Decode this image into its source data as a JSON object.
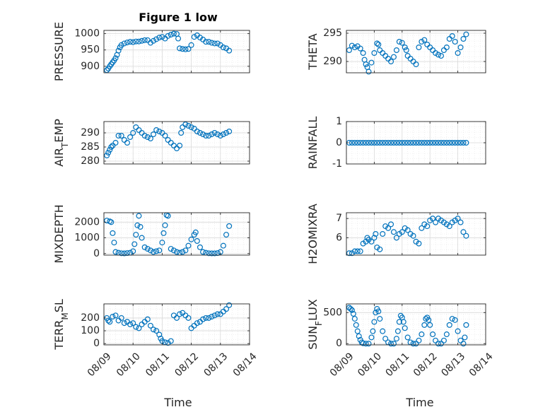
{
  "figure": {
    "title": "Figure 1 low",
    "xlabel": "Time"
  },
  "chart_data": [
    {
      "type": "scatter",
      "ylabel": "PRESSURE",
      "ylim": [
        880,
        1010
      ],
      "yticks": [
        900,
        950,
        1000
      ],
      "xlim": [
        "08/09",
        "08/14"
      ],
      "xticks": [
        "08/09",
        "08/10",
        "08/11",
        "08/12",
        "08/13",
        "08/14"
      ],
      "grid": "on",
      "show_xticklabels": false,
      "series": [
        {
          "x": [
            0.1,
            0.15,
            0.2,
            0.25,
            0.3,
            0.35,
            0.4,
            0.45,
            0.5,
            0.55,
            0.6,
            0.7,
            0.8,
            0.9,
            1.0,
            1.1,
            1.2,
            1.3,
            1.4,
            1.5,
            1.6,
            1.7,
            1.8,
            1.9,
            2.0,
            2.1,
            2.2,
            2.3,
            2.4,
            2.5,
            2.55,
            2.6,
            2.7,
            2.8,
            2.9,
            3.0,
            3.1,
            3.2,
            3.3,
            3.4,
            3.5,
            3.6,
            3.7,
            3.8,
            3.9,
            4.0,
            4.1,
            4.2,
            4.3
          ],
          "y": [
            888,
            893,
            900,
            906,
            912,
            918,
            925,
            935,
            948,
            958,
            965,
            970,
            973,
            975,
            974,
            976,
            976,
            978,
            980,
            980,
            972,
            978,
            983,
            988,
            990,
            985,
            993,
            997,
            1000,
            999,
            985,
            955,
            953,
            952,
            953,
            965,
            990,
            995,
            988,
            982,
            975,
            975,
            972,
            970,
            970,
            965,
            958,
            955,
            948
          ]
        }
      ]
    },
    {
      "type": "scatter",
      "ylabel": "THETA",
      "ylim": [
        288,
        295.5
      ],
      "yticks": [
        290,
        295
      ],
      "xlim": [
        "08/09",
        "08/14"
      ],
      "xticks": [
        "08/09",
        "08/10",
        "08/11",
        "08/12",
        "08/13",
        "08/14"
      ],
      "grid": "on",
      "show_xticklabels": false,
      "series": [
        {
          "x": [
            0.1,
            0.2,
            0.3,
            0.4,
            0.5,
            0.6,
            0.65,
            0.7,
            0.75,
            0.8,
            0.9,
            1.0,
            1.1,
            1.15,
            1.2,
            1.3,
            1.4,
            1.5,
            1.6,
            1.7,
            1.8,
            1.9,
            2.0,
            2.1,
            2.15,
            2.2,
            2.3,
            2.4,
            2.5,
            2.6,
            2.7,
            2.8,
            2.9,
            3.0,
            3.1,
            3.2,
            3.3,
            3.4,
            3.5,
            3.6,
            3.7,
            3.8,
            3.9,
            4.0,
            4.1,
            4.2,
            4.3
          ],
          "y": [
            292.0,
            292.8,
            292.5,
            292.7,
            292.3,
            291.5,
            290.3,
            289.5,
            289.0,
            288.2,
            289.8,
            291.5,
            293.2,
            293.0,
            292.0,
            291.5,
            291.0,
            290.5,
            290.0,
            290.8,
            292.0,
            293.5,
            293.3,
            292.5,
            292.0,
            291.0,
            290.5,
            290.0,
            289.5,
            292.5,
            293.5,
            293.8,
            293.0,
            292.5,
            292.0,
            291.5,
            291.2,
            291.0,
            292.0,
            292.5,
            294.0,
            294.5,
            293.5,
            291.5,
            292.5,
            294.0,
            294.8
          ]
        }
      ]
    },
    {
      "type": "scatter",
      "ylabel": "AIR_TEMP",
      "ylim": [
        279,
        294
      ],
      "yticks": [
        280,
        285,
        290
      ],
      "xlim": [
        "08/09",
        "08/14"
      ],
      "xticks": [
        "08/09",
        "08/10",
        "08/11",
        "08/12",
        "08/13",
        "08/14"
      ],
      "grid": "on",
      "show_xticklabels": false,
      "series": [
        {
          "x": [
            0.1,
            0.15,
            0.2,
            0.25,
            0.3,
            0.4,
            0.5,
            0.6,
            0.7,
            0.8,
            0.9,
            1.0,
            1.1,
            1.2,
            1.3,
            1.4,
            1.5,
            1.6,
            1.7,
            1.8,
            1.9,
            2.0,
            2.1,
            2.2,
            2.3,
            2.4,
            2.5,
            2.6,
            2.65,
            2.7,
            2.8,
            2.9,
            3.0,
            3.1,
            3.2,
            3.3,
            3.4,
            3.5,
            3.6,
            3.7,
            3.8,
            3.9,
            4.0,
            4.1,
            4.2,
            4.3
          ],
          "y": [
            282.0,
            283.0,
            284.0,
            285.0,
            285.5,
            286.5,
            289.0,
            289.0,
            287.5,
            286.5,
            288.5,
            290.0,
            292.0,
            291.0,
            290.0,
            289.0,
            288.5,
            288.0,
            289.5,
            291.0,
            290.5,
            290.0,
            289.0,
            287.5,
            286.5,
            285.5,
            284.5,
            285.5,
            290.0,
            292.0,
            293.0,
            292.5,
            292.0,
            291.5,
            290.5,
            290.0,
            289.5,
            289.0,
            289.0,
            289.5,
            290.0,
            289.5,
            289.0,
            289.5,
            290.0,
            290.5
          ]
        }
      ]
    },
    {
      "type": "scatter",
      "ylabel": "RAINFALL",
      "ylim": [
        -1,
        1
      ],
      "yticks": [
        -1,
        0,
        1
      ],
      "xlim": [
        "08/09",
        "08/14"
      ],
      "xticks": [
        "08/09",
        "08/10",
        "08/11",
        "08/12",
        "08/13",
        "08/14"
      ],
      "grid": "on",
      "show_xticklabels": false,
      "series": [
        {
          "x": [
            0.1,
            0.2,
            0.3,
            0.4,
            0.5,
            0.6,
            0.7,
            0.8,
            0.9,
            1.0,
            1.1,
            1.2,
            1.3,
            1.4,
            1.5,
            1.6,
            1.7,
            1.8,
            1.9,
            2.0,
            2.1,
            2.2,
            2.3,
            2.4,
            2.5,
            2.6,
            2.7,
            2.8,
            2.9,
            3.0,
            3.1,
            3.2,
            3.3,
            3.4,
            3.5,
            3.6,
            3.7,
            3.8,
            3.9,
            4.0,
            4.1,
            4.2,
            4.3
          ],
          "y": [
            0,
            0,
            0,
            0,
            0,
            0,
            0,
            0,
            0,
            0,
            0,
            0,
            0,
            0,
            0,
            0,
            0,
            0,
            0,
            0,
            0,
            0,
            0,
            0,
            0,
            0,
            0,
            0,
            0,
            0,
            0,
            0,
            0,
            0,
            0,
            0,
            0,
            0,
            0,
            0,
            0,
            0,
            0
          ]
        }
      ]
    },
    {
      "type": "scatter",
      "ylabel": "MIXDEPTH",
      "ylim": [
        -100,
        2600
      ],
      "yticks": [
        0,
        1000,
        2000
      ],
      "xlim": [
        "08/09",
        "08/14"
      ],
      "xticks": [
        "08/09",
        "08/10",
        "08/11",
        "08/12",
        "08/13",
        "08/14"
      ],
      "grid": "on",
      "show_xticklabels": false,
      "series": [
        {
          "x": [
            0.1,
            0.2,
            0.25,
            0.3,
            0.35,
            0.4,
            0.5,
            0.6,
            0.7,
            0.8,
            0.9,
            1.0,
            1.05,
            1.1,
            1.15,
            1.2,
            1.25,
            1.3,
            1.4,
            1.5,
            1.6,
            1.7,
            1.8,
            1.9,
            2.0,
            2.05,
            2.1,
            2.15,
            2.2,
            2.3,
            2.4,
            2.5,
            2.6,
            2.7,
            2.8,
            2.9,
            3.0,
            3.1,
            3.15,
            3.2,
            3.3,
            3.4,
            3.5,
            3.6,
            3.7,
            3.8,
            3.9,
            4.0,
            4.1,
            4.2,
            4.3
          ],
          "y": [
            2100,
            2050,
            2000,
            1300,
            700,
            100,
            50,
            20,
            10,
            30,
            50,
            150,
            600,
            1200,
            1800,
            2400,
            1700,
            1000,
            400,
            300,
            200,
            100,
            150,
            200,
            700,
            1300,
            1800,
            2450,
            2400,
            300,
            200,
            100,
            50,
            100,
            200,
            500,
            900,
            1200,
            1350,
            800,
            400,
            100,
            50,
            20,
            10,
            10,
            30,
            100,
            500,
            1200,
            1750
          ]
        }
      ]
    },
    {
      "type": "scatter",
      "ylabel": "H2OMIXRA",
      "ylim": [
        5.1,
        7.3
      ],
      "yticks": [
        6,
        7
      ],
      "xlim": [
        "08/09",
        "08/14"
      ],
      "xticks": [
        "08/09",
        "08/10",
        "08/11",
        "08/12",
        "08/13",
        "08/14"
      ],
      "grid": "on",
      "show_xticklabels": false,
      "series": [
        {
          "x": [
            0.1,
            0.2,
            0.3,
            0.4,
            0.5,
            0.6,
            0.7,
            0.75,
            0.8,
            0.9,
            1.0,
            1.05,
            1.1,
            1.2,
            1.3,
            1.4,
            1.5,
            1.6,
            1.7,
            1.8,
            1.9,
            2.0,
            2.1,
            2.2,
            2.3,
            2.4,
            2.5,
            2.6,
            2.7,
            2.8,
            2.9,
            3.0,
            3.1,
            3.2,
            3.3,
            3.4,
            3.5,
            3.6,
            3.7,
            3.8,
            3.9,
            4.0,
            4.1,
            4.2,
            4.3
          ],
          "y": [
            5.2,
            5.2,
            5.3,
            5.3,
            5.3,
            5.7,
            5.8,
            6.0,
            5.9,
            5.8,
            6.0,
            6.2,
            5.5,
            5.4,
            6.2,
            6.6,
            6.5,
            6.7,
            6.3,
            6.0,
            6.2,
            6.3,
            6.5,
            6.4,
            6.2,
            6.1,
            5.8,
            5.7,
            6.5,
            6.7,
            6.6,
            6.9,
            7.0,
            6.8,
            7.0,
            6.9,
            6.8,
            6.7,
            6.6,
            6.8,
            6.9,
            7.0,
            6.8,
            6.3,
            6.1
          ]
        }
      ]
    },
    {
      "type": "scatter",
      "ylabel": "TERR_MSL",
      "ylim": [
        -10,
        310
      ],
      "yticks": [
        0,
        100,
        200
      ],
      "xlim": [
        "08/09",
        "08/14"
      ],
      "xticks": [
        "08/09",
        "08/10",
        "08/11",
        "08/12",
        "08/13",
        "08/14"
      ],
      "grid": "on",
      "show_xticklabels": true,
      "series": [
        {
          "x": [
            0.1,
            0.15,
            0.2,
            0.3,
            0.4,
            0.5,
            0.6,
            0.7,
            0.8,
            0.9,
            1.0,
            1.1,
            1.2,
            1.3,
            1.4,
            1.5,
            1.6,
            1.7,
            1.8,
            1.9,
            1.95,
            2.0,
            2.1,
            2.2,
            2.3,
            2.4,
            2.5,
            2.6,
            2.7,
            2.8,
            2.9,
            3.0,
            3.1,
            3.2,
            3.3,
            3.4,
            3.5,
            3.6,
            3.7,
            3.8,
            3.9,
            4.0,
            4.1,
            4.2,
            4.3
          ],
          "y": [
            200,
            180,
            170,
            210,
            220,
            180,
            200,
            160,
            170,
            150,
            160,
            130,
            120,
            150,
            170,
            190,
            140,
            110,
            100,
            70,
            40,
            20,
            10,
            5,
            20,
            220,
            200,
            230,
            240,
            220,
            200,
            120,
            140,
            160,
            170,
            190,
            200,
            200,
            210,
            220,
            230,
            230,
            250,
            270,
            300
          ]
        }
      ]
    },
    {
      "type": "scatter",
      "ylabel": "SUN_FLUX",
      "ylim": [
        -20,
        640
      ],
      "yticks": [
        0,
        500
      ],
      "xlim": [
        "08/09",
        "08/14"
      ],
      "xticks": [
        "08/09",
        "08/10",
        "08/11",
        "08/12",
        "08/13",
        "08/14"
      ],
      "grid": "on",
      "show_xticklabels": true,
      "series": [
        {
          "x": [
            0.1,
            0.15,
            0.2,
            0.25,
            0.3,
            0.35,
            0.4,
            0.45,
            0.5,
            0.55,
            0.6,
            0.7,
            0.8,
            0.9,
            0.95,
            1.0,
            1.05,
            1.1,
            1.15,
            1.2,
            1.3,
            1.4,
            1.5,
            1.6,
            1.7,
            1.8,
            1.85,
            1.9,
            1.95,
            2.0,
            2.05,
            2.1,
            2.2,
            2.3,
            2.4,
            2.5,
            2.6,
            2.7,
            2.8,
            2.85,
            2.9,
            2.95,
            3.0,
            3.1,
            3.2,
            3.3,
            3.4,
            3.5,
            3.6,
            3.7,
            3.8,
            3.9,
            4.0,
            4.1,
            4.2,
            4.25,
            4.3
          ],
          "y": [
            580,
            560,
            540,
            480,
            400,
            300,
            200,
            120,
            60,
            20,
            5,
            0,
            0,
            100,
            200,
            350,
            500,
            560,
            520,
            400,
            200,
            80,
            20,
            0,
            0,
            80,
            200,
            350,
            450,
            420,
            350,
            250,
            100,
            20,
            0,
            0,
            50,
            150,
            300,
            400,
            420,
            380,
            300,
            150,
            50,
            0,
            0,
            50,
            150,
            300,
            400,
            380,
            200,
            50,
            0,
            100,
            300
          ]
        }
      ]
    }
  ]
}
